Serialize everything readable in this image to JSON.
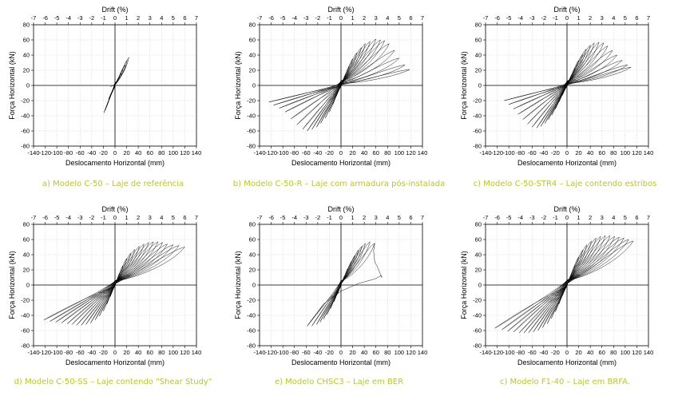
{
  "colors": {
    "caption": "#b7c534",
    "curve": "#000000",
    "grid": "#cfcfcf"
  },
  "chart_data": [
    {
      "type": "line",
      "caption": "a) Modelo C-50 – Laje de referência",
      "xlabel": "Deslocamento Horizontal (mm)",
      "ylabel": "Força Horizontal (kN)",
      "x2label": "Drift (%)",
      "xlim": [
        -140,
        140
      ],
      "ylim": [
        -80,
        80
      ],
      "x2lim": [
        -7,
        7
      ],
      "xticks": [
        -140,
        -120,
        -100,
        -80,
        -60,
        -40,
        -20,
        0,
        20,
        40,
        60,
        80,
        100,
        120,
        140
      ],
      "yticks": [
        -80,
        -60,
        -40,
        -20,
        0,
        20,
        40,
        60,
        80
      ],
      "x2ticks": [
        -7,
        -6,
        -5,
        -4,
        -3,
        -2,
        -1,
        0,
        1,
        2,
        3,
        4,
        5,
        6,
        7
      ],
      "grid": true,
      "peaks": [
        [
          5,
          8
        ],
        [
          8,
          12
        ],
        [
          11,
          16
        ],
        [
          14,
          21
        ],
        [
          18,
          27
        ],
        [
          21,
          33
        ],
        [
          24,
          37
        ]
      ],
      "neg_peaks": [
        [
          -5,
          -8
        ],
        [
          -8,
          -13
        ],
        [
          -11,
          -18
        ],
        [
          -13,
          -24
        ],
        [
          -15,
          -29
        ],
        [
          -17,
          -33
        ],
        [
          -19,
          -36
        ]
      ],
      "extra_paths": [
        {
          "points": [
            [
              -8,
              -2
            ],
            [
              -3,
              0
            ],
            [
              2,
              4
            ],
            [
              6,
              8
            ]
          ]
        }
      ]
    },
    {
      "type": "line",
      "caption": "b) Modelo C-50-R – Laje com armadura pós-instalada",
      "xlabel": "Deslocamento Horizontal (mm)",
      "ylabel": "Força Horizontal (kN)",
      "x2label": "Drift (%)",
      "xlim": [
        -140,
        140
      ],
      "ylim": [
        -80,
        80
      ],
      "x2lim": [
        -7,
        7
      ],
      "xticks": [
        -140,
        -120,
        -100,
        -80,
        -60,
        -40,
        -20,
        0,
        20,
        40,
        60,
        80,
        100,
        120,
        140
      ],
      "yticks": [
        -80,
        -60,
        -40,
        -20,
        0,
        20,
        40,
        60,
        80
      ],
      "x2ticks": [
        -7,
        -6,
        -5,
        -4,
        -3,
        -2,
        -1,
        0,
        1,
        2,
        3,
        4,
        5,
        6,
        7
      ],
      "grid": true,
      "peaks": [
        [
          8,
          15
        ],
        [
          14,
          25
        ],
        [
          20,
          35
        ],
        [
          27,
          43
        ],
        [
          35,
          50
        ],
        [
          42,
          55
        ],
        [
          50,
          58
        ],
        [
          60,
          61
        ],
        [
          68,
          60
        ],
        [
          75,
          59
        ],
        [
          83,
          55
        ],
        [
          92,
          46
        ],
        [
          100,
          36
        ],
        [
          110,
          27
        ],
        [
          118,
          21
        ]
      ],
      "neg_peaks": [
        [
          -8,
          -14
        ],
        [
          -14,
          -25
        ],
        [
          -20,
          -35
        ],
        [
          -27,
          -43
        ],
        [
          -35,
          -50
        ],
        [
          -42,
          -55
        ],
        [
          -50,
          -58
        ],
        [
          -58,
          -60
        ],
        [
          -66,
          -58
        ],
        [
          -76,
          -52
        ],
        [
          -86,
          -44
        ],
        [
          -96,
          -35
        ],
        [
          -106,
          -30
        ],
        [
          -116,
          -26
        ],
        [
          -124,
          -22
        ]
      ],
      "extra_paths": []
    },
    {
      "type": "line",
      "caption": "c) Modelo C-50-STR4 – Laje contendo estribos",
      "xlabel": "Deslocamento Horizontal (mm)",
      "ylabel": "Força Horizontal (kN)",
      "x2label": "Drift (%)",
      "xlim": [
        -140,
        140
      ],
      "ylim": [
        -80,
        80
      ],
      "x2lim": [
        -7,
        7
      ],
      "xticks": [
        -140,
        -120,
        -100,
        -80,
        -60,
        -40,
        -20,
        0,
        20,
        40,
        60,
        80,
        100,
        120,
        140
      ],
      "yticks": [
        -80,
        -60,
        -40,
        -20,
        0,
        20,
        40,
        60,
        80
      ],
      "x2ticks": [
        -7,
        -6,
        -5,
        -4,
        -3,
        -2,
        -1,
        0,
        1,
        2,
        3,
        4,
        5,
        6,
        7
      ],
      "grid": true,
      "peaks": [
        [
          8,
          14
        ],
        [
          14,
          23
        ],
        [
          20,
          33
        ],
        [
          27,
          41
        ],
        [
          33,
          48
        ],
        [
          40,
          53
        ],
        [
          47,
          56
        ],
        [
          55,
          57
        ],
        [
          63,
          56
        ],
        [
          70,
          52
        ],
        [
          78,
          46
        ],
        [
          86,
          40
        ],
        [
          95,
          33
        ],
        [
          104,
          27
        ],
        [
          110,
          24
        ]
      ],
      "neg_peaks": [
        [
          -8,
          -13
        ],
        [
          -14,
          -22
        ],
        [
          -20,
          -31
        ],
        [
          -26,
          -39
        ],
        [
          -32,
          -45
        ],
        [
          -38,
          -50
        ],
        [
          -45,
          -54
        ],
        [
          -52,
          -56
        ],
        [
          -60,
          -55
        ],
        [
          -68,
          -51
        ],
        [
          -76,
          -45
        ],
        [
          -84,
          -38
        ],
        [
          -92,
          -31
        ],
        [
          -100,
          -25
        ],
        [
          -108,
          -20
        ]
      ],
      "extra_paths": []
    },
    {
      "type": "line",
      "caption": "d) Modelo C-50-SS – Laje contendo \"Shear Study\"",
      "xlabel": "Deslocamento Horizontal (mm)",
      "ylabel": "Força Horizontal (kN)",
      "x2label": "Drift (%)",
      "xlim": [
        -140,
        140
      ],
      "ylim": [
        -80,
        80
      ],
      "x2lim": [
        -7,
        7
      ],
      "xticks": [
        -140,
        -120,
        -100,
        -80,
        -60,
        -40,
        -20,
        0,
        20,
        40,
        60,
        80,
        100,
        120,
        140
      ],
      "yticks": [
        -80,
        -60,
        -40,
        -20,
        0,
        20,
        40,
        60,
        80
      ],
      "x2ticks": [
        -7,
        -6,
        -5,
        -4,
        -3,
        -2,
        -1,
        0,
        1,
        2,
        3,
        4,
        5,
        6,
        7
      ],
      "grid": true,
      "peaks": [
        [
          8,
          16
        ],
        [
          14,
          26
        ],
        [
          20,
          35
        ],
        [
          27,
          42
        ],
        [
          34,
          47
        ],
        [
          42,
          51
        ],
        [
          50,
          54
        ],
        [
          58,
          56
        ],
        [
          66,
          57
        ],
        [
          74,
          57
        ],
        [
          82,
          56
        ],
        [
          90,
          54
        ],
        [
          100,
          53
        ],
        [
          110,
          52
        ],
        [
          120,
          50
        ]
      ],
      "neg_peaks": [
        [
          -8,
          -15
        ],
        [
          -14,
          -25
        ],
        [
          -20,
          -34
        ],
        [
          -27,
          -41
        ],
        [
          -34,
          -46
        ],
        [
          -42,
          -50
        ],
        [
          -50,
          -52
        ],
        [
          -58,
          -53
        ],
        [
          -66,
          -53
        ],
        [
          -74,
          -52
        ],
        [
          -82,
          -51
        ],
        [
          -92,
          -50
        ],
        [
          -102,
          -49
        ],
        [
          -112,
          -48
        ],
        [
          -122,
          -46
        ]
      ],
      "extra_paths": []
    },
    {
      "type": "line",
      "caption": "e) Modelo CHSC3 – Laje em BER",
      "xlabel": "Deslocamento Horizontal (mm)",
      "ylabel": "Força Horizontal (kN)",
      "x2label": "Drift (%)",
      "xlim": [
        -140,
        140
      ],
      "ylim": [
        -80,
        80
      ],
      "x2lim": [
        -7,
        7
      ],
      "xticks": [
        -140,
        -120,
        -100,
        -80,
        -60,
        -40,
        -20,
        0,
        20,
        40,
        60,
        80,
        100,
        120,
        140
      ],
      "yticks": [
        -80,
        -60,
        -40,
        -20,
        0,
        20,
        40,
        60,
        80
      ],
      "x2ticks": [
        -7,
        -6,
        -5,
        -4,
        -3,
        -2,
        -1,
        0,
        1,
        2,
        3,
        4,
        5,
        6,
        7
      ],
      "grid": true,
      "peaks": [
        [
          6,
          12
        ],
        [
          12,
          22
        ],
        [
          18,
          31
        ],
        [
          24,
          39
        ],
        [
          30,
          46
        ],
        [
          36,
          51
        ],
        [
          42,
          55
        ],
        [
          50,
          57
        ],
        [
          58,
          55
        ]
      ],
      "neg_peaks": [
        [
          -6,
          -12
        ],
        [
          -12,
          -22
        ],
        [
          -18,
          -31
        ],
        [
          -24,
          -39
        ],
        [
          -30,
          -45
        ],
        [
          -36,
          -49
        ],
        [
          -42,
          -52
        ],
        [
          -50,
          -54
        ],
        [
          -58,
          -54
        ]
      ],
      "extra_paths": [
        {
          "points": [
            [
              -58,
              -54
            ],
            [
              -30,
              -25
            ],
            [
              0,
              -8
            ],
            [
              30,
              2
            ],
            [
              58,
              8
            ],
            [
              68,
              12
            ],
            [
              70,
              12
            ],
            [
              70,
              10
            ],
            [
              62,
              25
            ],
            [
              58,
              30
            ],
            [
              56,
              45
            ],
            [
              58,
              55
            ]
          ]
        }
      ]
    },
    {
      "type": "line",
      "caption": "c) Modelo F1-40 – Laje em BRFA.",
      "xlabel": "Deslocamento Horizontal (mm)",
      "ylabel": "Força Horizontal (kN)",
      "x2label": "Drift (%)",
      "xlim": [
        -140,
        140
      ],
      "ylim": [
        -80,
        80
      ],
      "x2lim": [
        -7,
        7
      ],
      "xticks": [
        -140,
        -120,
        -100,
        -80,
        -60,
        -40,
        -20,
        0,
        20,
        40,
        60,
        80,
        100,
        120,
        140
      ],
      "yticks": [
        -80,
        -60,
        -40,
        -20,
        0,
        20,
        40,
        60,
        80
      ],
      "x2ticks": [
        -7,
        -6,
        -5,
        -4,
        -3,
        -2,
        -1,
        0,
        1,
        2,
        3,
        4,
        5,
        6,
        7
      ],
      "grid": true,
      "peaks": [
        [
          8,
          15
        ],
        [
          14,
          26
        ],
        [
          20,
          37
        ],
        [
          27,
          46
        ],
        [
          34,
          53
        ],
        [
          42,
          58
        ],
        [
          50,
          62
        ],
        [
          58,
          64
        ],
        [
          66,
          65
        ],
        [
          74,
          65
        ],
        [
          82,
          64
        ],
        [
          90,
          63
        ],
        [
          98,
          62
        ],
        [
          106,
          60
        ],
        [
          114,
          58
        ]
      ],
      "neg_peaks": [
        [
          -8,
          -14
        ],
        [
          -14,
          -25
        ],
        [
          -20,
          -35
        ],
        [
          -27,
          -44
        ],
        [
          -34,
          -51
        ],
        [
          -42,
          -56
        ],
        [
          -50,
          -60
        ],
        [
          -58,
          -62
        ],
        [
          -66,
          -63
        ],
        [
          -74,
          -63
        ],
        [
          -82,
          -63
        ],
        [
          -92,
          -62
        ],
        [
          -102,
          -61
        ],
        [
          -112,
          -59
        ],
        [
          -124,
          -57
        ]
      ],
      "extra_paths": []
    }
  ]
}
